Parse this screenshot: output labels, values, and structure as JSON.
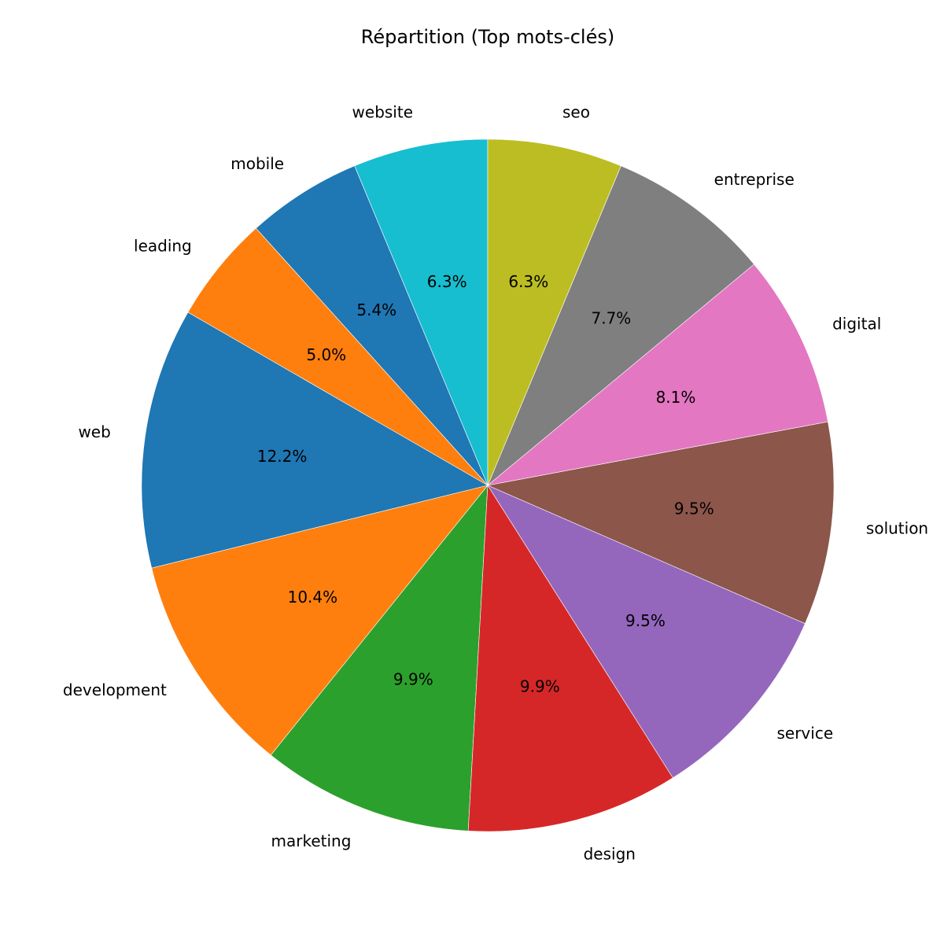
{
  "chart_data": {
    "type": "pie",
    "title": "Répartition (Top mots-clés)",
    "start_angle_deg": 90,
    "direction": "counterclockwise",
    "slices": [
      {
        "label": "website",
        "value": 6.3,
        "display": "6.3%",
        "color": "#17becf"
      },
      {
        "label": "mobile",
        "value": 5.4,
        "display": "5.4%",
        "color": "#1f77b4"
      },
      {
        "label": "leading",
        "value": 5.0,
        "display": "5.0%",
        "color": "#ff7f0e"
      },
      {
        "label": "web",
        "value": 12.2,
        "display": "12.2%",
        "color": "#1f77b4"
      },
      {
        "label": "development",
        "value": 10.4,
        "display": "10.4%",
        "color": "#ff7f0e"
      },
      {
        "label": "marketing",
        "value": 9.9,
        "display": "9.9%",
        "color": "#2ca02c"
      },
      {
        "label": "design",
        "value": 9.9,
        "display": "9.9%",
        "color": "#d62728"
      },
      {
        "label": "service",
        "value": 9.5,
        "display": "9.5%",
        "color": "#9467bd"
      },
      {
        "label": "solution",
        "value": 9.5,
        "display": "9.5%",
        "color": "#8c564b"
      },
      {
        "label": "digital",
        "value": 8.1,
        "display": "8.1%",
        "color": "#e377c2"
      },
      {
        "label": "entreprise",
        "value": 7.7,
        "display": "7.7%",
        "color": "#7f7f7f"
      },
      {
        "label": "seo",
        "value": 6.3,
        "display": "6.3%",
        "color": "#bcbd22"
      }
    ]
  }
}
